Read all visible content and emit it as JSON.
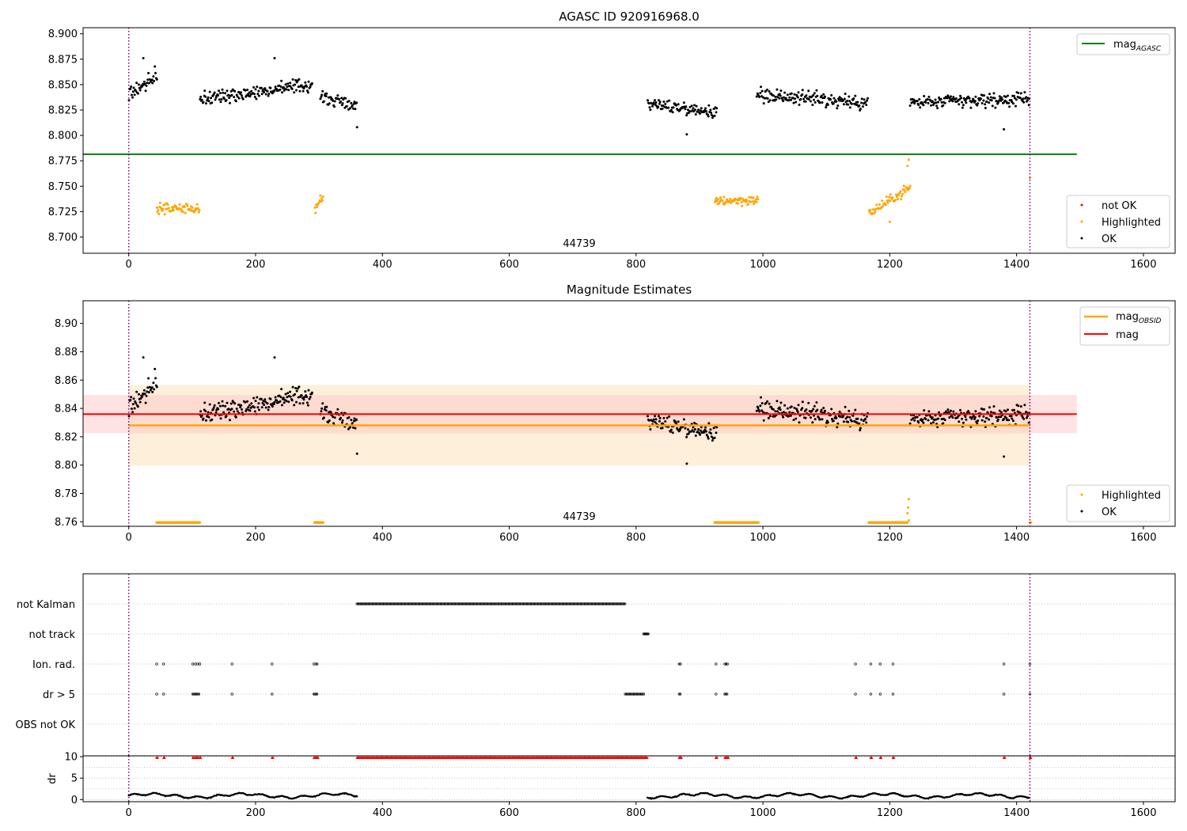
{
  "colors": {
    "ok": "#000000",
    "highlighted": "#ffa500",
    "not_ok": "#ff0000",
    "agasc_line": "#008000",
    "obsid_line": "#ffa500",
    "mag_line": "#ff0000",
    "obsid_band": "#fdebd0",
    "mag_band": "#ffc8c8",
    "obs_boundary": "#800080",
    "grid": "#b0b0b0"
  },
  "chart_data": [
    {
      "type": "scatter",
      "title": "AGASC ID 920916968.0",
      "obsid_label": "44739",
      "xlim": [
        -72,
        1650
      ],
      "ylim": [
        8.684,
        8.906
      ],
      "xticks": [
        "0",
        "200",
        "400",
        "600",
        "800",
        "1000",
        "1200",
        "1400",
        "1600"
      ],
      "yticks": [
        "8.700",
        "8.725",
        "8.750",
        "8.775",
        "8.800",
        "8.825",
        "8.850",
        "8.875",
        "8.900"
      ],
      "obs_boundaries": [
        0,
        1421
      ],
      "lines": [
        {
          "name": "mag",
          "subscript": "AGASC",
          "y": 8.7815,
          "x": [
            -72,
            1495
          ]
        }
      ],
      "legend_lines": [
        {
          "name": "mag",
          "subscript": "AGASC"
        }
      ],
      "legend_points": [
        "not OK",
        "Highlighted",
        "OK"
      ],
      "ok_segments": [
        {
          "x": [
            0,
            45
          ],
          "center": 8.85,
          "spread": 0.012,
          "slope": 0.00035
        },
        {
          "x": [
            112,
            290
          ],
          "center": 8.843,
          "spread": 0.01,
          "slope": 8e-05
        },
        {
          "x": [
            302,
            360
          ],
          "center": 8.833,
          "spread": 0.009,
          "slope": -0.00015
        },
        {
          "x": [
            818,
            928
          ],
          "center": 8.827,
          "spread": 0.009,
          "slope": -8e-05
        },
        {
          "x": [
            990,
            1165
          ],
          "center": 8.836,
          "spread": 0.011,
          "slope": -5e-05
        },
        {
          "x": [
            1232,
            1421
          ],
          "center": 8.834,
          "spread": 0.01,
          "slope": 2e-05
        }
      ],
      "ok_outliers": [
        [
          360,
          8.808
        ],
        [
          880,
          8.801
        ],
        [
          1380,
          8.806
        ],
        [
          23,
          8.876
        ],
        [
          230,
          8.876
        ]
      ],
      "highlighted_segments": [
        {
          "x": [
            44,
            112
          ],
          "center": 8.728,
          "spread": 0.007,
          "slope": 0
        },
        {
          "x": [
            293,
            307
          ],
          "center": 8.732,
          "spread": 0.01,
          "slope": 0.0008
        },
        {
          "x": [
            924,
            993
          ],
          "center": 8.736,
          "spread": 0.007,
          "slope": 0
        },
        {
          "x": [
            1167,
            1232
          ],
          "center": 8.736,
          "spread": 0.007,
          "slope": 0.0004
        }
      ],
      "highlighted_outliers": [
        [
          1230,
          8.776
        ],
        [
          1228,
          8.77
        ],
        [
          1421,
          8.758
        ],
        [
          1200,
          8.715
        ]
      ],
      "not_ok": []
    },
    {
      "type": "scatter",
      "title": "Magnitude Estimates",
      "obsid_label": "44739",
      "xlim": [
        -72,
        1650
      ],
      "ylim": [
        8.7568,
        8.916
      ],
      "xticks": [
        "0",
        "200",
        "400",
        "600",
        "800",
        "1000",
        "1200",
        "1400",
        "1600"
      ],
      "yticks": [
        "8.76",
        "8.78",
        "8.80",
        "8.82",
        "8.84",
        "8.86",
        "8.88",
        "8.90"
      ],
      "obs_boundaries": [
        0,
        1421
      ],
      "bands": [
        {
          "name": "obsid",
          "x": [
            0,
            1421
          ],
          "y": [
            8.7995,
            8.8565
          ]
        },
        {
          "name": "mag",
          "x": [
            -72,
            1495
          ],
          "y": [
            8.8225,
            8.8495
          ]
        }
      ],
      "lines": [
        {
          "name": "mag",
          "subscript": "OBSID",
          "y": 8.828,
          "x": [
            0,
            1421
          ]
        },
        {
          "name": "mag",
          "subscript": "",
          "y": 8.836,
          "x": [
            -72,
            1495
          ]
        }
      ],
      "legend_lines": [
        {
          "name": "mag",
          "subscript": "OBSID"
        },
        {
          "name": "mag",
          "subscript": ""
        }
      ],
      "legend_points": [
        "Highlighted",
        "OK"
      ],
      "highlighted_floor": [
        [
          44,
          112
        ],
        [
          293,
          307
        ],
        [
          924,
          993
        ],
        [
          1167,
          1228
        ],
        [
          1421,
          1423
        ]
      ],
      "highlighted_outliers": [
        [
          1230,
          8.776
        ],
        [
          1229,
          8.77
        ],
        [
          1228,
          8.766
        ],
        [
          1230,
          8.761
        ]
      ]
    },
    {
      "type": "scatter",
      "ylabels": [
        "not Kalman",
        "not track",
        "Ion. rad.",
        "dr > 5",
        "OBS not OK"
      ],
      "xlim": [
        -72,
        1650
      ],
      "xticks": [
        "0",
        "200",
        "400",
        "600",
        "800",
        "1000",
        "1200",
        "1400",
        "1600"
      ],
      "obs_boundaries": [
        0,
        1421
      ],
      "flags": {
        "not_kalman": [
          [
            360,
            783
          ]
        ],
        "not_track": [
          [
            812,
            820
          ]
        ],
        "ion_rad": [
          44,
          55,
          101,
          105,
          108,
          112,
          163,
          226,
          292,
          295,
          297,
          868,
          870,
          926,
          940,
          942,
          944,
          1146,
          1170,
          1185,
          1205,
          1380,
          1421
        ],
        "dr5": [
          [
            44,
            44
          ],
          [
            55,
            55
          ],
          [
            101,
            112
          ],
          [
            163,
            163
          ],
          [
            226,
            226
          ],
          [
            292,
            298
          ],
          [
            783,
            812
          ],
          [
            868,
            870
          ],
          [
            926,
            926
          ],
          [
            940,
            944
          ],
          [
            1146,
            1146
          ],
          [
            1170,
            1170
          ],
          [
            1185,
            1185
          ],
          [
            1205,
            1205
          ],
          [
            1380,
            1380
          ],
          [
            1421,
            1421
          ]
        ]
      }
    },
    {
      "type": "scatter",
      "ylabel": "dr",
      "xlim": [
        -72,
        1650
      ],
      "ylim": [
        -0.5,
        10.2
      ],
      "yticks": [
        "0",
        "5",
        "10"
      ],
      "xticks": [
        "0",
        "200",
        "400",
        "600",
        "800",
        "1000",
        "1200",
        "1400",
        "1600"
      ],
      "obs_boundaries": [
        0,
        1421
      ],
      "dr_segments": [
        [
          0,
          360
        ],
        [
          818,
          1421
        ]
      ],
      "dr_red_points": [
        44,
        55,
        101,
        105,
        108,
        112,
        163,
        226,
        292,
        295,
        297,
        868,
        870,
        926,
        940,
        942,
        944,
        1146,
        1170,
        1185,
        1205,
        1380,
        1421
      ],
      "dr_red_range": [
        [
          360,
          818
        ]
      ]
    }
  ]
}
